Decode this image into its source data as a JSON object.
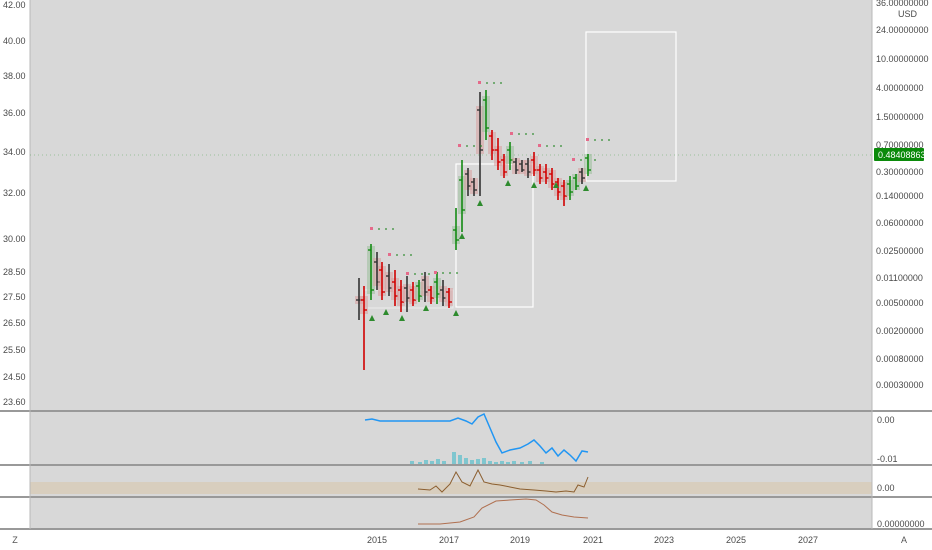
{
  "left_axis": {
    "ticks": [
      "42.00",
      "40.00",
      "38.00",
      "36.00",
      "34.00",
      "32.00",
      "30.00",
      "28.50",
      "27.50",
      "26.50",
      "25.50",
      "24.50",
      "23.60"
    ]
  },
  "right_axis": {
    "unit": "USD",
    "ticks": [
      "36.00000000",
      "24.00000000",
      "10.00000000",
      "4.00000000",
      "1.50000000",
      "0.70000000",
      "0.30000000",
      "0.14000000",
      "0.06000000",
      "0.02500000",
      "0.01100000",
      "0.00500000",
      "0.00200000",
      "0.00080000",
      "0.00030000"
    ],
    "price_badge": "0.48408863",
    "badge_color": "#0a8a0a"
  },
  "x_axis": {
    "ticks": [
      "2015",
      "2017",
      "2019",
      "2021",
      "2023",
      "2025",
      "2027"
    ]
  },
  "panes": {
    "pane2_ticks": [
      "0.00",
      "-0.01"
    ],
    "pane3_ticks": [
      "0.00"
    ],
    "pane4_ticks": [
      "0.00000000"
    ]
  },
  "corner": {
    "left": "Z",
    "right": "A"
  },
  "colors": {
    "up": "#138a13",
    "down": "#d10000",
    "neutral": "#333333",
    "volume": "#7fc6cf",
    "oscillator": "#2196f3",
    "brown": "#8b5e2f"
  }
}
